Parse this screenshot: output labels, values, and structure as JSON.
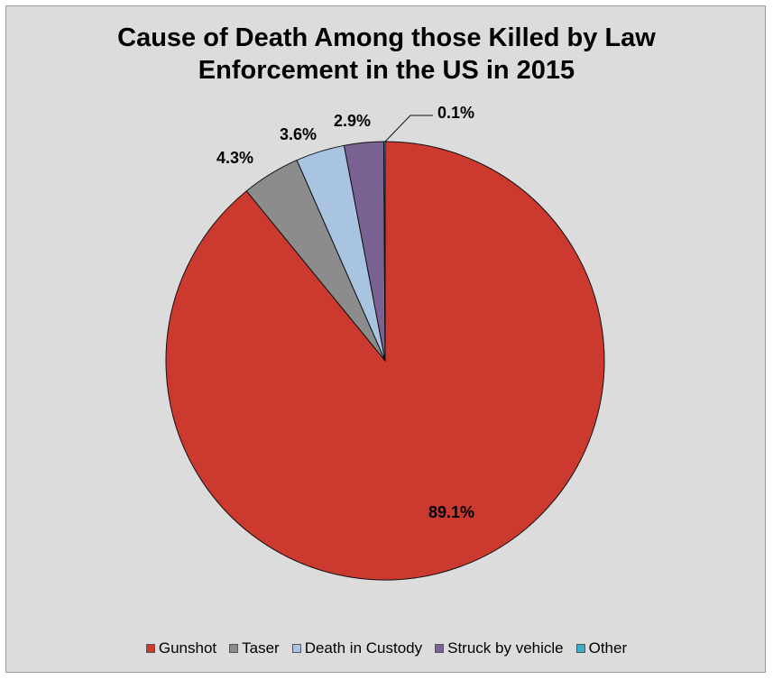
{
  "chart_data": {
    "type": "pie",
    "title_lines": [
      "Cause of Death Among those Killed by Law",
      "Enforcement in the US in 2015"
    ],
    "slices": [
      {
        "name": "Gunshot",
        "value": 89.1,
        "label": "89.1%",
        "color": "#cc3a2f"
      },
      {
        "name": "Taser",
        "value": 4.3,
        "label": "4.3%",
        "color": "#8c8c8c"
      },
      {
        "name": "Death in Custody",
        "value": 3.6,
        "label": "3.6%",
        "color": "#a9c4e0"
      },
      {
        "name": "Struck by vehicle",
        "value": 2.9,
        "label": "2.9%",
        "color": "#7a6293"
      },
      {
        "name": "Other",
        "value": 0.1,
        "label": "0.1%",
        "color": "#3ab0c8"
      }
    ],
    "start_angle": "12 o'clock",
    "direction": "clockwise",
    "legend_position": "bottom",
    "background_color": "#dcdcdc"
  }
}
